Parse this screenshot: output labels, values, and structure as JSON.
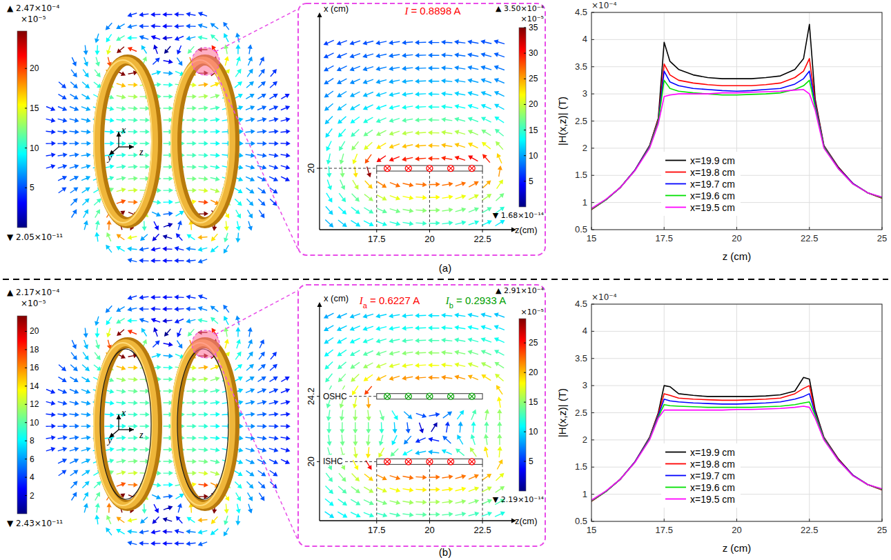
{
  "chart_data": [
    {
      "type": "line",
      "x": [
        15,
        15.5,
        16,
        16.5,
        17,
        17.3,
        17.5,
        17.7,
        18,
        18.5,
        19,
        19.5,
        20,
        20.5,
        21,
        21.5,
        22,
        22.3,
        22.5,
        22.7,
        23,
        23.5,
        24,
        24.5,
        25
      ],
      "xlim": [
        15,
        25
      ],
      "ylim": [
        0.5,
        4.5
      ],
      "xticks": [
        15,
        17.5,
        20,
        22.5,
        25
      ],
      "yticks": [
        0.5,
        1,
        1.5,
        2,
        2.5,
        3,
        3.5,
        4,
        4.5
      ],
      "x_label": "z (cm)",
      "y_label": "|H(x,z)| (T)",
      "y_multiplier": "×10⁻⁴",
      "grid": true,
      "legend": "bottom",
      "series": [
        {
          "name": "x=19.9 cm",
          "color": "#000000",
          "values": [
            0.87,
            1.05,
            1.28,
            1.6,
            2.05,
            2.55,
            3.95,
            3.6,
            3.45,
            3.35,
            3.3,
            3.28,
            3.28,
            3.28,
            3.3,
            3.33,
            3.45,
            3.65,
            4.28,
            2.9,
            2.05,
            1.65,
            1.35,
            1.18,
            1.08
          ]
        },
        {
          "name": "x=19.8 cm",
          "color": "#ff0000",
          "values": [
            0.87,
            1.05,
            1.28,
            1.6,
            2.04,
            2.53,
            3.55,
            3.35,
            3.25,
            3.2,
            3.17,
            3.15,
            3.15,
            3.15,
            3.17,
            3.2,
            3.3,
            3.42,
            3.65,
            2.85,
            2.04,
            1.64,
            1.35,
            1.18,
            1.08
          ]
        },
        {
          "name": "x=19.7 cm",
          "color": "#0000ff",
          "values": [
            0.88,
            1.05,
            1.28,
            1.6,
            2.03,
            2.5,
            3.42,
            3.22,
            3.15,
            3.1,
            3.08,
            3.06,
            3.05,
            3.06,
            3.08,
            3.1,
            3.18,
            3.28,
            3.42,
            2.8,
            2.03,
            1.63,
            1.35,
            1.18,
            1.09
          ]
        },
        {
          "name": "x=19.6 cm",
          "color": "#00e000",
          "values": [
            0.88,
            1.05,
            1.28,
            1.59,
            2.02,
            2.48,
            3.25,
            3.1,
            3.05,
            3.02,
            3.0,
            2.98,
            2.98,
            2.99,
            3.0,
            3.02,
            3.08,
            3.15,
            3.25,
            2.75,
            2.02,
            1.62,
            1.34,
            1.18,
            1.09
          ]
        },
        {
          "name": "x=19.5 cm",
          "color": "#ff00ff",
          "values": [
            0.89,
            1.06,
            1.28,
            1.59,
            2.0,
            2.45,
            2.95,
            2.98,
            3.0,
            3.0,
            3.0,
            3.02,
            3.02,
            3.03,
            3.04,
            3.05,
            3.07,
            3.08,
            3.0,
            2.7,
            2.0,
            1.62,
            1.34,
            1.18,
            1.1
          ]
        }
      ]
    },
    {
      "type": "line",
      "x": [
        15,
        15.5,
        16,
        16.5,
        17,
        17.3,
        17.5,
        17.7,
        18,
        18.5,
        19,
        19.5,
        20,
        20.5,
        21,
        21.5,
        22,
        22.3,
        22.5,
        22.7,
        23,
        23.5,
        24,
        24.5,
        25
      ],
      "xlim": [
        15,
        25
      ],
      "ylim": [
        0.5,
        4.5
      ],
      "xticks": [
        15,
        17.5,
        20,
        22.5,
        25
      ],
      "yticks": [
        0.5,
        1,
        1.5,
        2,
        2.5,
        3,
        3.5,
        4,
        4.5
      ],
      "x_label": "z (cm)",
      "y_label": "|H(x,z)| (T)",
      "y_multiplier": "×10⁻⁴",
      "grid": true,
      "legend": "bottom",
      "series": [
        {
          "name": "x=19.9 cm",
          "color": "#000000",
          "values": [
            0.87,
            1.05,
            1.28,
            1.6,
            2.05,
            2.5,
            3.0,
            2.98,
            2.85,
            2.82,
            2.8,
            2.8,
            2.8,
            2.8,
            2.81,
            2.83,
            2.9,
            3.15,
            3.12,
            2.55,
            2.05,
            1.65,
            1.35,
            1.18,
            1.08
          ]
        },
        {
          "name": "x=19.8 cm",
          "color": "#ff0000",
          "values": [
            0.87,
            1.05,
            1.28,
            1.6,
            2.04,
            2.48,
            2.85,
            2.82,
            2.77,
            2.75,
            2.74,
            2.73,
            2.73,
            2.74,
            2.75,
            2.77,
            2.85,
            2.95,
            3.0,
            2.5,
            2.04,
            1.64,
            1.35,
            1.18,
            1.08
          ]
        },
        {
          "name": "x=19.7 cm",
          "color": "#0000ff",
          "values": [
            0.88,
            1.05,
            1.28,
            1.6,
            2.03,
            2.45,
            2.75,
            2.72,
            2.7,
            2.68,
            2.67,
            2.66,
            2.66,
            2.67,
            2.68,
            2.7,
            2.75,
            2.8,
            2.85,
            2.48,
            2.03,
            1.63,
            1.35,
            1.18,
            1.09
          ]
        },
        {
          "name": "x=19.6 cm",
          "color": "#00e000",
          "values": [
            0.88,
            1.05,
            1.28,
            1.59,
            2.02,
            2.42,
            2.65,
            2.63,
            2.62,
            2.61,
            2.6,
            2.6,
            2.6,
            2.6,
            2.61,
            2.62,
            2.65,
            2.68,
            2.7,
            2.45,
            2.02,
            1.62,
            1.34,
            1.18,
            1.09
          ]
        },
        {
          "name": "x=19.5 cm",
          "color": "#ff00ff",
          "values": [
            0.89,
            1.06,
            1.28,
            1.59,
            2.0,
            2.4,
            2.55,
            2.55,
            2.55,
            2.55,
            2.55,
            2.55,
            2.56,
            2.56,
            2.57,
            2.58,
            2.6,
            2.62,
            2.6,
            2.4,
            2.0,
            1.62,
            1.34,
            1.18,
            1.1
          ]
        }
      ]
    }
  ],
  "figure": {
    "rows": [
      {
        "label": "(a)",
        "field3d": {
          "axes": [
            "x",
            "y",
            "z"
          ],
          "colorbar": {
            "max_label": "▲ 2.47×10⁻⁴",
            "unit_label": "×10⁻⁵",
            "min_label": "▼ 2.05×10⁻¹¹",
            "lim": [
              0,
              24.7
            ],
            "ticks": [
              5,
              10,
              15,
              20
            ]
          }
        },
        "inset": {
          "currents": [
            {
              "symbol": "I",
              "text": "= 0.8898 A",
              "color": "#ff0000"
            }
          ],
          "x_label": "x (cm)",
          "z_label": "z(cm)",
          "zlim": [
            14.8,
            23.9
          ],
          "xlim": [
            16.2,
            29.4
          ],
          "zticks": [
            17.5,
            20,
            22.5
          ],
          "xticks": [
            20
          ],
          "coils": [
            {
              "x": 20,
              "z": [
                17.5,
                22.5
              ],
              "color": "#ff0000"
            }
          ],
          "colorbar": {
            "max_label": "▲ 3.50×10⁻⁴",
            "unit_label": "×10⁻⁵",
            "min_label": "▼ 1.68×10⁻¹⁴",
            "lim": [
              0,
              35
            ],
            "ticks": [
              5,
              10,
              15,
              20,
              25,
              30,
              35
            ]
          }
        }
      },
      {
        "label": "(b)",
        "field3d": {
          "axes": [
            "x",
            "y",
            "z"
          ],
          "colorbar": {
            "max_label": "▲ 2.17×10⁻⁴",
            "unit_label": "×10⁻⁵",
            "min_label": "▼ 2.43×10⁻¹¹",
            "lim": [
              0,
              21.7
            ],
            "ticks": [
              2,
              4,
              6,
              8,
              10,
              12,
              14,
              16,
              18,
              20
            ]
          }
        },
        "inset": {
          "currents": [
            {
              "symbol": "I",
              "subscript": "a",
              "text": "= 0.6227 A",
              "color": "#ff0000"
            },
            {
              "symbol": "I",
              "subscript": "b",
              "text": "= 0.2933 A",
              "color": "#00a000"
            }
          ],
          "x_label": "x (cm)",
          "z_label": "z(cm)",
          "zlim": [
            14.8,
            23.9
          ],
          "xlim": [
            16.2,
            30
          ],
          "zticks": [
            17.5,
            20,
            22.5
          ],
          "xticks": [
            20,
            24.2
          ],
          "coils": [
            {
              "x": 20,
              "z": [
                17.5,
                22.5
              ],
              "color": "#ff0000",
              "label": "ISHC"
            },
            {
              "x": 24.2,
              "z": [
                17.5,
                22.5
              ],
              "color": "#00a000",
              "label": "OSHC"
            }
          ],
          "colorbar": {
            "max_label": "▲ 2.91×10⁻⁴",
            "unit_label": "×10⁻⁵",
            "min_label": "▼ 2.19×10⁻¹⁴",
            "lim": [
              0,
              29.1
            ],
            "ticks": [
              5,
              10,
              15,
              20,
              25
            ]
          }
        }
      }
    ]
  }
}
